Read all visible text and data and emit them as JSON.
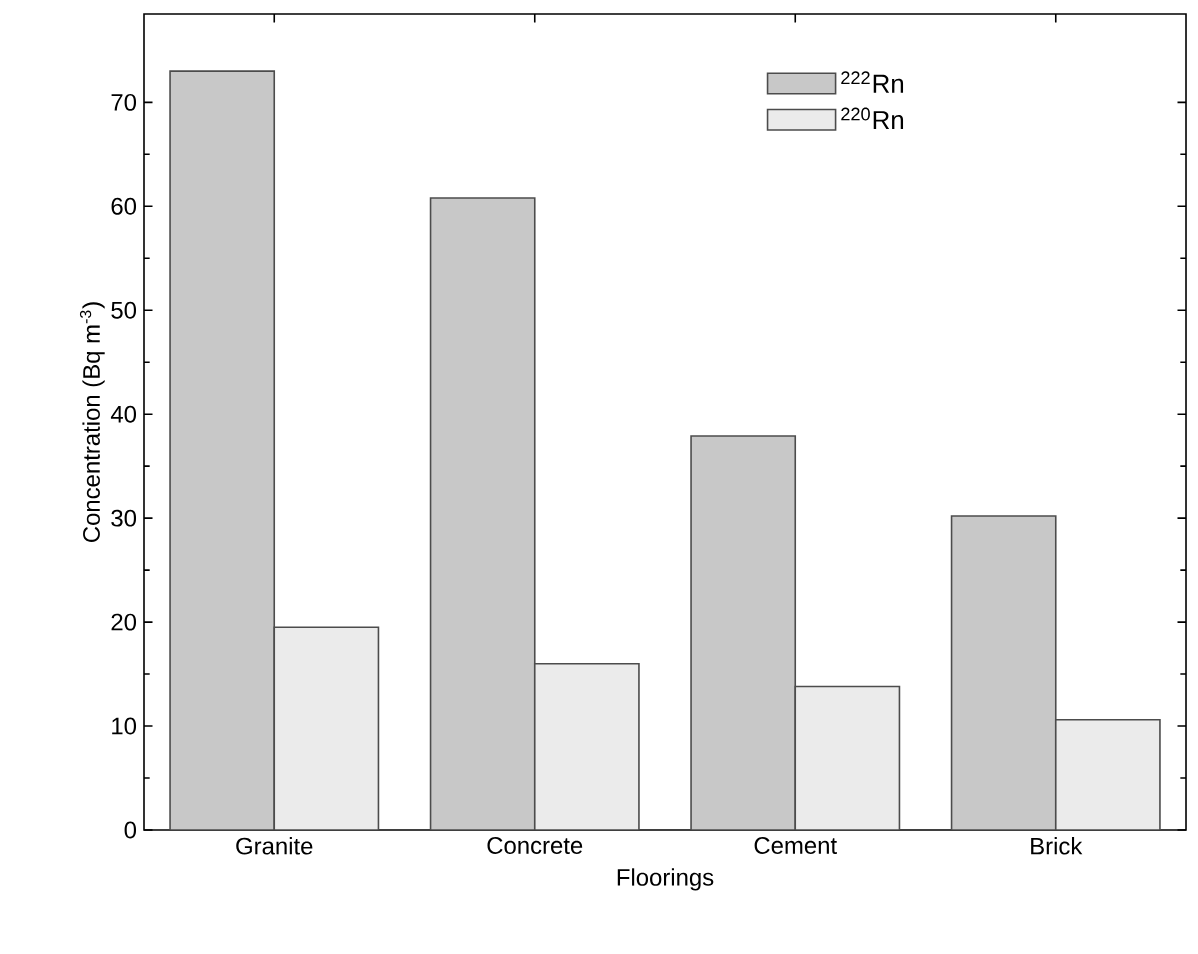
{
  "chart_data": {
    "type": "bar",
    "xlabel": "Floorings",
    "ylabel": "Concentration (Bq m$^{-3}$)",
    "categories": [
      "Granite",
      "Concrete",
      "Cement",
      "Brick"
    ],
    "series": [
      {
        "name": "$^{222}$Rn",
        "color": "#c8c8c8",
        "values": [
          73.0,
          60.8,
          37.9,
          30.2
        ]
      },
      {
        "name": "$^{220}$Rn",
        "color": "#ebebeb",
        "values": [
          19.5,
          16.0,
          13.8,
          10.6
        ]
      }
    ],
    "ylim": [
      0,
      78.5
    ],
    "yticks": [
      0,
      10,
      20,
      30,
      40,
      50,
      60,
      70
    ],
    "legend": "top right"
  }
}
